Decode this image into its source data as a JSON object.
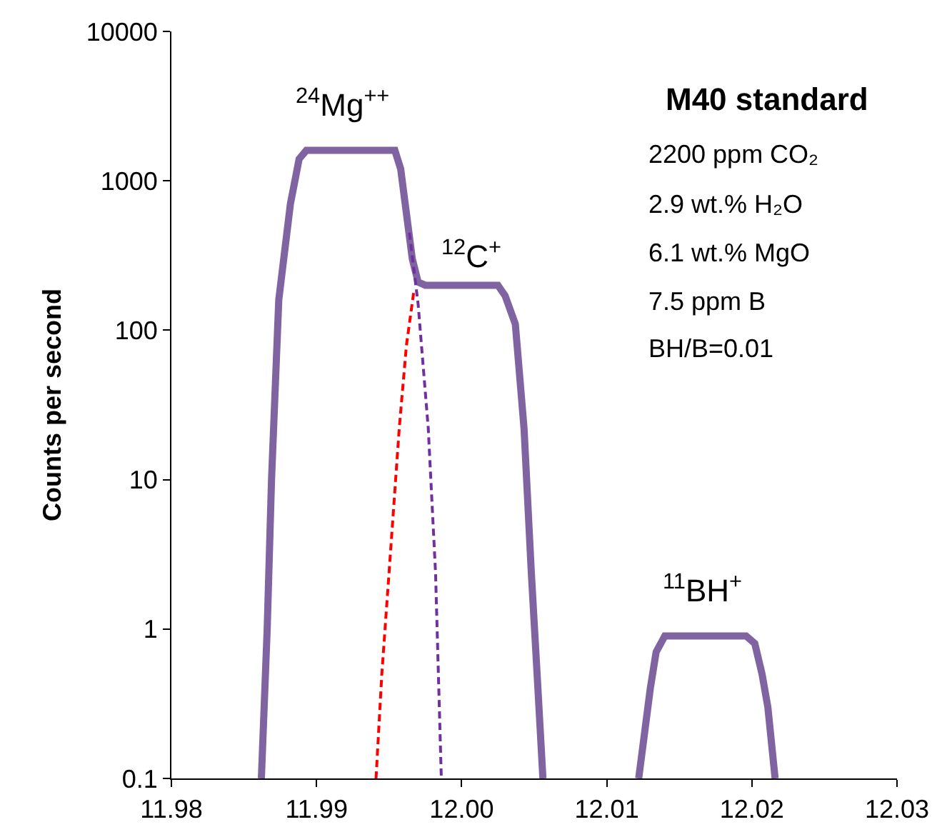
{
  "chart_data": {
    "type": "line",
    "ylabel": "Counts per second",
    "log": "y",
    "grid": false,
    "marker": "none",
    "xlim": [
      11.98,
      12.03
    ],
    "xticks": [
      11.98,
      11.99,
      {
        "value": 12,
        "label": "12.00"
      },
      12.01,
      12.02,
      12.03
    ],
    "ylim": [
      0.1,
      10000
    ],
    "yticks": [
      0.1,
      1,
      10,
      100,
      1000,
      10000
    ],
    "series": [
      {
        "color": "#8064a2",
        "line_style": "solid",
        "x": [
          11.9862,
          11.9866,
          11.9869,
          11.9874,
          11.9882,
          11.9888,
          11.9893,
          11.9954,
          11.9958,
          11.9962,
          11.9966,
          11.997,
          11.9975,
          12.0025,
          12.003,
          12.0037,
          12.0043,
          12.0048,
          12.0052,
          12.0056,
          12.009,
          12.0122,
          12.0126,
          12.013,
          12.0134,
          12.014,
          12.0196,
          12.0202,
          12.0207,
          12.0211,
          12.0216
        ],
        "values": [
          0.1,
          1,
          10,
          160,
          700,
          1400,
          1600,
          1600,
          1200,
          600,
          300,
          210,
          200,
          200,
          170,
          110,
          22,
          2.4,
          0.5,
          0.1,
          null,
          0.1,
          0.2,
          0.4,
          0.7,
          0.9,
          0.9,
          0.8,
          0.5,
          0.3,
          0.1
        ]
      },
      {
        "color": "#ff0000",
        "line_style": "dashed",
        "x": [
          11.9941,
          11.9945,
          11.995,
          11.9957,
          11.9962,
          11.9967
        ],
        "values": [
          0.1,
          0.5,
          2.4,
          22,
          80,
          180
        ]
      },
      {
        "color": "#7030a0",
        "line_style": "dashed",
        "x": [
          11.9964,
          11.997,
          11.9977,
          11.9982,
          11.9986
        ],
        "values": [
          450,
          150,
          22,
          2.4,
          0.1
        ]
      }
    ],
    "annotations": [
      "$^{24}$Mg$^{++}$",
      "$^{12}$C$^{+}$",
      "$^{11}$BH$^{+}$",
      "M40 standard",
      "2200 ppm CO₂",
      "2.9 wt.% H₂O",
      "6.1 wt.% MgO",
      "7.5 ppm B",
      "BH/B=0.01"
    ]
  }
}
